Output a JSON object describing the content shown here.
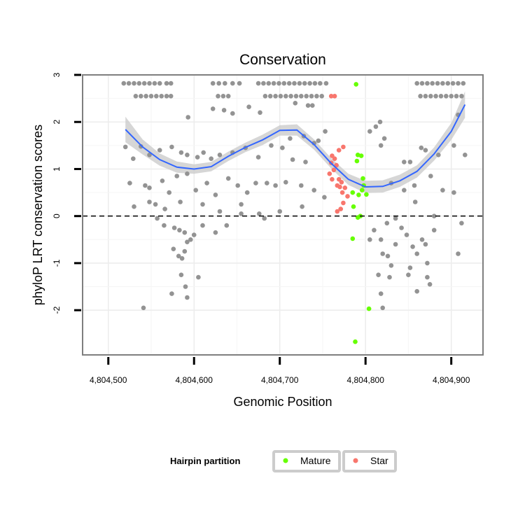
{
  "chart_data": {
    "type": "scatter",
    "title": "Conservation",
    "xlabel": "Genomic Position",
    "ylabel": "phyloP LRT conservation scores",
    "xlim": [
      4804470,
      4804937
    ],
    "ylim": [
      -2.95,
      3.0
    ],
    "x_ticks": [
      {
        "value": 4804500,
        "label": "4,804,500"
      },
      {
        "value": 4804600,
        "label": "4,804,600"
      },
      {
        "value": 4804700,
        "label": "4,804,700"
      },
      {
        "value": 4804800,
        "label": "4,804,800"
      },
      {
        "value": 4804900,
        "label": "4,804,900"
      }
    ],
    "y_ticks": [
      {
        "value": -2,
        "label": "-2"
      },
      {
        "value": -1,
        "label": "-1"
      },
      {
        "value": 0,
        "label": "0"
      },
      {
        "value": 1,
        "label": "1"
      },
      {
        "value": 2,
        "label": "2"
      },
      {
        "value": 3,
        "label": "3"
      }
    ],
    "grid": true,
    "reference_line": {
      "y": 0,
      "style": "dashed"
    },
    "legend": {
      "title": "Hairpin partition",
      "placement": "bottom",
      "entries": [
        {
          "label": "Mature",
          "color": "#66ff00"
        },
        {
          "label": "Star",
          "color": "#f8766d"
        }
      ]
    },
    "colors": {
      "background": "#ffffff",
      "other": "#939393",
      "mature": "#66ff00",
      "star": "#f8766d",
      "smooth_line": "#3366ff",
      "smooth_band": "#cccccc"
    },
    "smooth": {
      "x": [
        4804520,
        4804540,
        4804560,
        4804580,
        4804600,
        4804620,
        4804640,
        4804660,
        4804680,
        4804700,
        4804720,
        4804740,
        4804760,
        4804780,
        4804800,
        4804820,
        4804840,
        4804860,
        4804880,
        4804900,
        4804916
      ],
      "y": [
        1.84,
        1.47,
        1.2,
        1.04,
        1.0,
        1.05,
        1.27,
        1.46,
        1.62,
        1.82,
        1.83,
        1.52,
        1.12,
        0.78,
        0.62,
        0.63,
        0.75,
        0.95,
        1.32,
        1.8,
        2.37
      ],
      "lower": [
        1.57,
        1.31,
        1.07,
        0.92,
        0.9,
        0.95,
        1.17,
        1.36,
        1.51,
        1.71,
        1.71,
        1.41,
        1.01,
        0.66,
        0.49,
        0.5,
        0.62,
        0.82,
        1.18,
        1.62,
        2.09
      ],
      "upper": [
        2.11,
        1.63,
        1.33,
        1.16,
        1.1,
        1.15,
        1.37,
        1.56,
        1.73,
        1.93,
        1.95,
        1.63,
        1.23,
        0.9,
        0.75,
        0.76,
        0.88,
        1.08,
        1.46,
        1.98,
        2.65
      ]
    },
    "series": [
      {
        "name": "Mature",
        "color": "#66ff00",
        "points": [
          [
            4804789,
            2.8
          ],
          [
            4804790,
            1.17
          ],
          [
            4804791,
            1.3
          ],
          [
            4804795,
            1.28
          ],
          [
            4804797,
            0.8
          ],
          [
            4804798,
            0.65
          ],
          [
            4804796,
            0.55
          ],
          [
            4804792,
            0.45
          ],
          [
            4804801,
            0.46
          ],
          [
            4804785,
            0.5
          ],
          [
            4804786,
            0.2
          ],
          [
            4804791,
            -0.03
          ],
          [
            4804794,
            0.0
          ],
          [
            4804785,
            -0.48
          ],
          [
            4804804,
            -1.97
          ],
          [
            4804788,
            -2.67
          ]
        ]
      },
      {
        "name": "Star",
        "color": "#f8766d",
        "points": [
          [
            4804760,
            2.55
          ],
          [
            4804764,
            2.55
          ],
          [
            4804769,
            1.4
          ],
          [
            4804774,
            1.47
          ],
          [
            4804761,
            1.28
          ],
          [
            4804764,
            1.22
          ],
          [
            4804766,
            1.08
          ],
          [
            4804760,
            1.13
          ],
          [
            4804763,
            0.98
          ],
          [
            4804758,
            0.9
          ],
          [
            4804761,
            0.78
          ],
          [
            4804769,
            0.78
          ],
          [
            4804772,
            0.72
          ],
          [
            4804767,
            0.65
          ],
          [
            4804770,
            0.62
          ],
          [
            4804776,
            0.6
          ],
          [
            4804773,
            0.5
          ],
          [
            4804779,
            0.42
          ],
          [
            4804774,
            0.28
          ],
          [
            4804771,
            0.15
          ],
          [
            4804767,
            0.1
          ]
        ]
      },
      {
        "points": [
          [
            4804518,
            2.82
          ],
          [
            4804524,
            2.82
          ],
          [
            4804530,
            2.82
          ],
          [
            4804536,
            2.82
          ],
          [
            4804542,
            2.82
          ],
          [
            4804548,
            2.82
          ],
          [
            4804554,
            2.82
          ],
          [
            4804560,
            2.82
          ],
          [
            4804568,
            2.82
          ],
          [
            4804573,
            2.82
          ],
          [
            4804622,
            2.82
          ],
          [
            4804629,
            2.82
          ],
          [
            4804636,
            2.82
          ],
          [
            4804645,
            2.82
          ],
          [
            4804653,
            2.82
          ],
          [
            4804675,
            2.82
          ],
          [
            4804681,
            2.82
          ],
          [
            4804687,
            2.82
          ],
          [
            4804693,
            2.82
          ],
          [
            4804699,
            2.82
          ],
          [
            4804705,
            2.82
          ],
          [
            4804711,
            2.82
          ],
          [
            4804717,
            2.82
          ],
          [
            4804723,
            2.82
          ],
          [
            4804729,
            2.82
          ],
          [
            4804735,
            2.82
          ],
          [
            4804741,
            2.82
          ],
          [
            4804747,
            2.82
          ],
          [
            4804754,
            2.82
          ],
          [
            4804860,
            2.82
          ],
          [
            4804866,
            2.82
          ],
          [
            4804872,
            2.82
          ],
          [
            4804878,
            2.82
          ],
          [
            4804884,
            2.82
          ],
          [
            4804890,
            2.82
          ],
          [
            4804896,
            2.82
          ],
          [
            4804902,
            2.82
          ],
          [
            4804908,
            2.82
          ],
          [
            4804914,
            2.82
          ],
          [
            4804532,
            2.55
          ],
          [
            4804538,
            2.55
          ],
          [
            4804544,
            2.55
          ],
          [
            4804550,
            2.55
          ],
          [
            4804556,
            2.55
          ],
          [
            4804562,
            2.55
          ],
          [
            4804568,
            2.55
          ],
          [
            4804573,
            2.55
          ],
          [
            4804628,
            2.55
          ],
          [
            4804634,
            2.55
          ],
          [
            4804640,
            2.55
          ],
          [
            4804683,
            2.55
          ],
          [
            4804689,
            2.55
          ],
          [
            4804695,
            2.55
          ],
          [
            4804701,
            2.55
          ],
          [
            4804707,
            2.55
          ],
          [
            4804713,
            2.55
          ],
          [
            4804719,
            2.55
          ],
          [
            4804725,
            2.55
          ],
          [
            4804731,
            2.55
          ],
          [
            4804737,
            2.55
          ],
          [
            4804743,
            2.55
          ],
          [
            4804749,
            2.55
          ],
          [
            4804864,
            2.55
          ],
          [
            4804870,
            2.55
          ],
          [
            4804876,
            2.55
          ],
          [
            4804882,
            2.55
          ],
          [
            4804888,
            2.55
          ],
          [
            4804894,
            2.55
          ],
          [
            4804900,
            2.55
          ],
          [
            4804906,
            2.55
          ],
          [
            4804912,
            2.55
          ],
          [
            4804733,
            2.35
          ],
          [
            4804738,
            2.35
          ],
          [
            4804718,
            2.4
          ],
          [
            4804664,
            2.32
          ],
          [
            4804677,
            2.2
          ],
          [
            4804622,
            2.28
          ],
          [
            4804635,
            2.25
          ],
          [
            4804645,
            2.18
          ],
          [
            4804593,
            2.1
          ],
          [
            4804908,
            2.15
          ],
          [
            4804817,
            2.0
          ],
          [
            4804812,
            1.9
          ],
          [
            4804805,
            1.8
          ],
          [
            4804822,
            1.65
          ],
          [
            4804818,
            1.5
          ],
          [
            4804753,
            1.8
          ],
          [
            4804745,
            1.6
          ],
          [
            4804740,
            1.55
          ],
          [
            4804728,
            1.7
          ],
          [
            4804712,
            1.65
          ],
          [
            4804520,
            1.47
          ],
          [
            4804538,
            1.48
          ],
          [
            4804548,
            1.3
          ],
          [
            4804529,
            1.22
          ],
          [
            4804560,
            1.4
          ],
          [
            4804574,
            1.47
          ],
          [
            4804585,
            1.35
          ],
          [
            4804592,
            1.3
          ],
          [
            4804611,
            1.35
          ],
          [
            4804604,
            1.25
          ],
          [
            4804620,
            1.22
          ],
          [
            4804630,
            1.3
          ],
          [
            4804645,
            1.35
          ],
          [
            4804660,
            1.45
          ],
          [
            4804675,
            1.25
          ],
          [
            4804690,
            1.5
          ],
          [
            4804703,
            1.45
          ],
          [
            4804715,
            1.2
          ],
          [
            4804730,
            1.15
          ],
          [
            4804845,
            1.15
          ],
          [
            4804852,
            1.15
          ],
          [
            4804865,
            1.45
          ],
          [
            4804870,
            1.4
          ],
          [
            4804885,
            1.3
          ],
          [
            4804903,
            1.5
          ],
          [
            4804916,
            1.3
          ],
          [
            4804525,
            0.7
          ],
          [
            4804530,
            0.2
          ],
          [
            4804543,
            0.65
          ],
          [
            4804548,
            0.6
          ],
          [
            4804555,
            0.25
          ],
          [
            4804563,
            0.75
          ],
          [
            4804571,
            0.5
          ],
          [
            4804580,
            0.85
          ],
          [
            4804592,
            0.9
          ],
          [
            4804602,
            0.55
          ],
          [
            4804615,
            0.7
          ],
          [
            4804625,
            0.45
          ],
          [
            4804640,
            0.8
          ],
          [
            4804651,
            0.65
          ],
          [
            4804662,
            0.5
          ],
          [
            4804672,
            0.7
          ],
          [
            4804685,
            0.7
          ],
          [
            4804695,
            0.65
          ],
          [
            4804707,
            0.72
          ],
          [
            4804725,
            0.65
          ],
          [
            4804740,
            0.55
          ],
          [
            4804752,
            0.4
          ],
          [
            4804830,
            0.7
          ],
          [
            4804845,
            0.55
          ],
          [
            4804857,
            0.65
          ],
          [
            4804876,
            0.85
          ],
          [
            4804890,
            0.55
          ],
          [
            4804903,
            0.5
          ],
          [
            4804548,
            0.3
          ],
          [
            4804566,
            0.15
          ],
          [
            4804584,
            0.3
          ],
          [
            4804610,
            0.25
          ],
          [
            4804630,
            0.1
          ],
          [
            4804655,
            0.25
          ],
          [
            4804676,
            0.05
          ],
          [
            4804700,
            0.1
          ],
          [
            4804726,
            0.2
          ],
          [
            4804858,
            0.3
          ],
          [
            4804880,
            0.0
          ],
          [
            4804557,
            -0.05
          ],
          [
            4804565,
            -0.2
          ],
          [
            4804577,
            -0.25
          ],
          [
            4804583,
            -0.3
          ],
          [
            4804589,
            -0.35
          ],
          [
            4804596,
            -0.5
          ],
          [
            4804600,
            -0.4
          ],
          [
            4804610,
            -0.2
          ],
          [
            4804625,
            -0.35
          ],
          [
            4804638,
            -0.2
          ],
          [
            4804655,
            0.05
          ],
          [
            4804682,
            -0.05
          ],
          [
            4804576,
            -0.7
          ],
          [
            4804582,
            -0.85
          ],
          [
            4804586,
            -0.9
          ],
          [
            4804589,
            -0.75
          ],
          [
            4804592,
            -0.55
          ],
          [
            4804585,
            -1.25
          ],
          [
            4804590,
            -1.5
          ],
          [
            4804605,
            -1.3
          ],
          [
            4804574,
            -1.65
          ],
          [
            4804592,
            -1.73
          ],
          [
            4804541,
            -1.95
          ],
          [
            4804810,
            -0.3
          ],
          [
            4804818,
            -0.5
          ],
          [
            4804820,
            -0.8
          ],
          [
            4804826,
            -0.85
          ],
          [
            4804830,
            -1.05
          ],
          [
            4804815,
            -1.25
          ],
          [
            4804818,
            -1.65
          ],
          [
            4804820,
            -1.95
          ],
          [
            4804835,
            -0.6
          ],
          [
            4804842,
            -0.25
          ],
          [
            4804848,
            -0.4
          ],
          [
            4804855,
            -0.65
          ],
          [
            4804860,
            -0.8
          ],
          [
            4804852,
            -1.1
          ],
          [
            4804850,
            -1.25
          ],
          [
            4804866,
            -0.5
          ],
          [
            4804870,
            -0.6
          ],
          [
            4804872,
            -1.0
          ],
          [
            4804872,
            -1.3
          ],
          [
            4804880,
            -0.3
          ],
          [
            4804828,
            -1.3
          ],
          [
            4804860,
            -1.6
          ],
          [
            4804875,
            -1.45
          ],
          [
            4804835,
            -0.05
          ],
          [
            4804805,
            -0.5
          ],
          [
            4804825,
            -0.15
          ],
          [
            4804912,
            -0.15
          ],
          [
            4804908,
            -0.8
          ]
        ]
      }
    ]
  }
}
